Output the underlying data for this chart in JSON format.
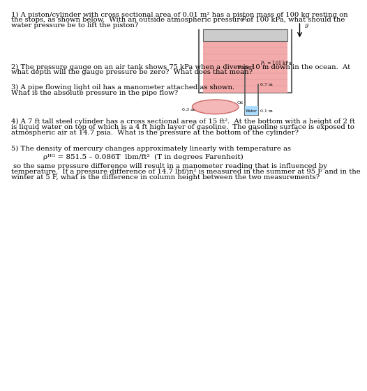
{
  "bg_color": "#ffffff",
  "q1_line1": "1) A piston/cylinder with cross sectional area of 0.01 m² has a piston mass of 100 kg resting on",
  "q1_line2": "the stops, as shown below.  With an outside atmospheric pressure of 100 kPa, what should the",
  "q1_line3": "water pressure be to lift the piston?",
  "q2_line1": "2) The pressure gauge on an air tank shows 75 kPa when a diver is 10 m down in the ocean.  At",
  "q2_line2": "what depth will the gauge pressure be zero?  What does that mean?",
  "q3_line1": "3) A pipe flowing light oil has a manometer attached as shown.",
  "q3_line2": "What is the absolute pressure in the pipe flow?",
  "q4_line1": "4) A 7 ft tall steel cylinder has a cross sectional area of 15 ft².  At the bottom with a height of 2 ft",
  "q4_line2": "is liquid water on top of which is a 4 ft high layer of gasoline.  The gasoline surface is exposed to",
  "q4_line3": "atmospheric air at 14.7 psia.  What is the pressure at the bottom of the cylinder?",
  "q5_line1": "5) The density of mercury changes approximately linearly with temperature as",
  "q5_formula": "ρᴴᴳ = 851.5 – 0.086T  lbm/ft³  (T in degrees Farenheit)",
  "q5_cont1": " so the same pressure difference will result in a manometer reading that is influenced by",
  "q5_cont2": "temperature.  If a pressure difference of 14.7 lbf/in² is measured in the summer at 95 F and in the",
  "q5_cont3": "winter at 5 F, what is the difference in column height between the two measurements?",
  "font_size": 7.2
}
